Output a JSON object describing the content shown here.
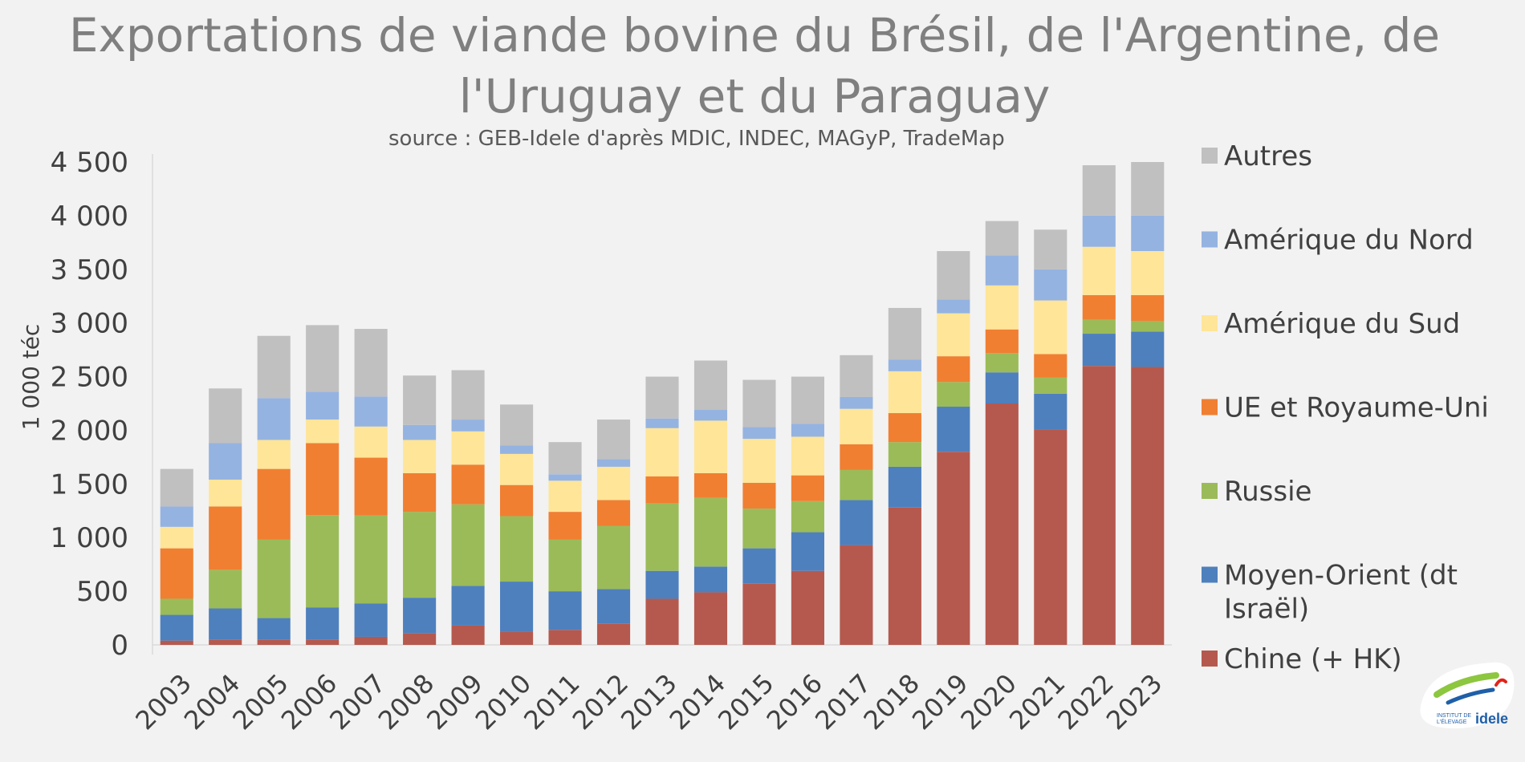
{
  "title": "Exportations de viande bovine du Brésil, de l'Argentine, de l'Uruguay et du Paraguay",
  "subtitle": "source : GEB-Idele d'après MDIC, INDEC, MAGyP,  TradeMap",
  "logo": {
    "line1": "INSTITUT DE",
    "line2": "L'ÉLEVAGE",
    "word": "idele"
  },
  "chart_data": {
    "type": "bar",
    "stacked": true,
    "ylabel": "1 000 téc",
    "ylim": [
      0,
      4500
    ],
    "yticks": [
      0,
      500,
      1000,
      1500,
      2000,
      2500,
      3000,
      3500,
      4000,
      4500
    ],
    "ytick_labels": [
      "0",
      "500",
      "1 000",
      "1 500",
      "2 000",
      "2 500",
      "3 000",
      "3 500",
      "4 000",
      "4 500"
    ],
    "legend_position": "right",
    "categories": [
      "2003",
      "2004",
      "2005",
      "2006",
      "2007",
      "2008",
      "2009",
      "2010",
      "2011",
      "2012",
      "2013",
      "2014",
      "2015",
      "2016",
      "2017",
      "2018",
      "2019",
      "2020",
      "2021",
      "2022",
      "2023"
    ],
    "series": [
      {
        "name": "Chine (+ HK)",
        "color": "#b5594e",
        "values": [
          40,
          50,
          50,
          50,
          75,
          110,
          180,
          120,
          140,
          200,
          430,
          490,
          570,
          690,
          930,
          1280,
          1800,
          2250,
          2010,
          2600,
          2590
        ]
      },
      {
        "name": "Moyen-Orient (dt Israël)",
        "color": "#4e80bd",
        "values": [
          240,
          290,
          200,
          300,
          310,
          330,
          370,
          470,
          360,
          320,
          260,
          240,
          330,
          360,
          420,
          380,
          420,
          290,
          330,
          300,
          330
        ]
      },
      {
        "name": "Russie",
        "color": "#9bbb59",
        "values": [
          150,
          360,
          730,
          860,
          820,
          800,
          760,
          610,
          480,
          590,
          630,
          640,
          370,
          290,
          280,
          230,
          230,
          180,
          150,
          130,
          100
        ]
      },
      {
        "name": "UE et Royaume-Uni",
        "color": "#f07f32",
        "values": [
          470,
          590,
          660,
          670,
          540,
          360,
          370,
          290,
          260,
          240,
          250,
          230,
          240,
          240,
          240,
          270,
          240,
          220,
          220,
          230,
          240
        ]
      },
      {
        "name": "Amérique du Sud",
        "color": "#ffe598",
        "values": [
          200,
          250,
          270,
          220,
          290,
          310,
          310,
          290,
          290,
          310,
          450,
          490,
          410,
          360,
          330,
          390,
          400,
          410,
          500,
          450,
          410
        ]
      },
      {
        "name": "Amérique du Nord",
        "color": "#95b3e0",
        "values": [
          190,
          340,
          390,
          260,
          280,
          140,
          110,
          80,
          60,
          70,
          90,
          100,
          110,
          120,
          110,
          110,
          130,
          280,
          290,
          290,
          330
        ]
      },
      {
        "name": "Autres",
        "color": "#c0c0c0",
        "values": [
          350,
          510,
          580,
          620,
          630,
          460,
          460,
          380,
          300,
          370,
          390,
          460,
          440,
          440,
          390,
          480,
          450,
          320,
          370,
          470,
          500
        ]
      }
    ]
  }
}
